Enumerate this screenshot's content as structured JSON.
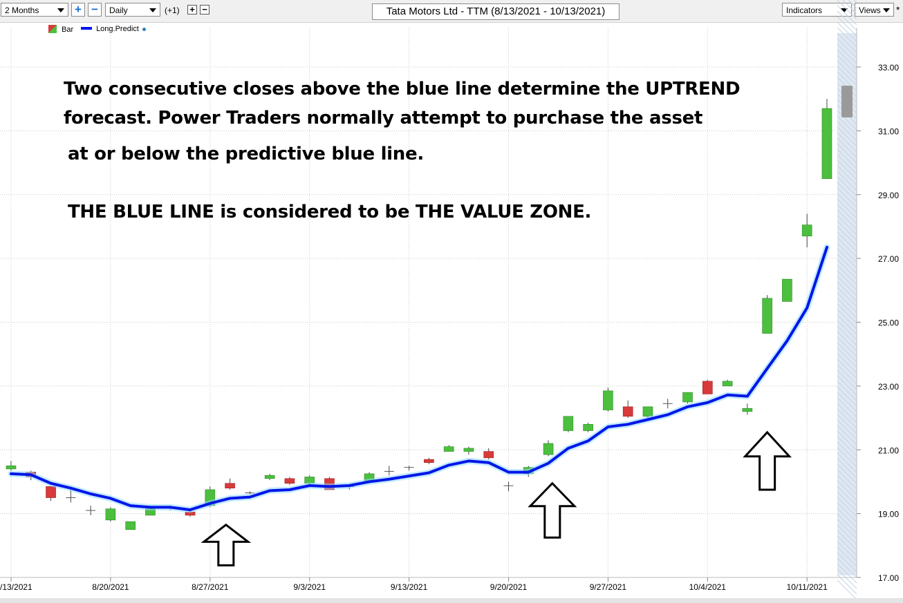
{
  "toolbar": {
    "range_select": "2 Months",
    "interval_select": "Daily",
    "offset_text": "(+1)",
    "plus_glyph": "+",
    "minus_glyph": "−",
    "title": "Tata Motors Ltd - TTM (8/13/2021 - 10/13/2021)",
    "indicators_label": "Indicators",
    "views_label": "Views",
    "star": "*"
  },
  "legend": {
    "bar_label": "Bar",
    "predict_label": "Long.Predict"
  },
  "annotations": {
    "line1": "Two consecutive closes above the blue line determine the UPTREND",
    "line2": "forecast.    Power Traders normally attempt to purchase the asset",
    "line3": "at or below the predictive blue line.",
    "line4": "THE BLUE LINE is considered to be THE VALUE ZONE."
  },
  "colors": {
    "up": "#4cbf3f",
    "down": "#d93a3a",
    "predict": "#0016e8",
    "glow": "#8fd8ff",
    "grid": "#c8c8c8"
  },
  "chart_data": {
    "type": "bar",
    "title": "Tata Motors Ltd - TTM (8/13/2021 - 10/13/2021)",
    "ylim": [
      17.0,
      33.8
    ],
    "y_ticks": [
      "17.00",
      "19.00",
      "21.00",
      "23.00",
      "25.00",
      "27.00",
      "29.00",
      "31.00",
      "33.00"
    ],
    "x_ticks": [
      {
        "label": "/13/2021",
        "index": 0
      },
      {
        "label": "8/20/2021",
        "index": 5
      },
      {
        "label": "8/27/2021",
        "index": 10
      },
      {
        "label": "9/3/2021",
        "index": 15
      },
      {
        "label": "9/13/2021",
        "index": 20
      },
      {
        "label": "9/20/2021",
        "index": 25
      },
      {
        "label": "9/27/2021",
        "index": 30
      },
      {
        "label": "10/4/2021",
        "index": 35
      },
      {
        "label": "10/11/2021",
        "index": 40
      }
    ],
    "candles": [
      {
        "o": 20.4,
        "h": 20.65,
        "l": 20.35,
        "c": 20.5
      },
      {
        "o": 20.3,
        "h": 20.35,
        "l": 20.05,
        "c": 20.15
      },
      {
        "o": 19.85,
        "h": 19.85,
        "l": 19.4,
        "c": 19.5
      },
      {
        "o": 19.5,
        "h": 19.75,
        "l": 19.35,
        "c": 19.5
      },
      {
        "o": 19.1,
        "h": 19.25,
        "l": 18.95,
        "c": 19.1
      },
      {
        "o": 18.8,
        "h": 19.2,
        "l": 18.75,
        "c": 19.15
      },
      {
        "o": 18.5,
        "h": 18.75,
        "l": 18.5,
        "c": 18.75
      },
      {
        "o": 18.95,
        "h": 19.2,
        "l": 18.95,
        "c": 19.15
      },
      {
        "o": 19.2,
        "h": 19.25,
        "l": 19.1,
        "c": 19.2
      },
      {
        "o": 19.05,
        "h": 19.1,
        "l": 18.9,
        "c": 18.95
      },
      {
        "o": 19.25,
        "h": 19.85,
        "l": 19.2,
        "c": 19.75
      },
      {
        "o": 19.95,
        "h": 20.1,
        "l": 19.75,
        "c": 19.8
      },
      {
        "o": 19.65,
        "h": 19.7,
        "l": 19.6,
        "c": 19.65
      },
      {
        "o": 20.1,
        "h": 20.25,
        "l": 20.05,
        "c": 20.2
      },
      {
        "o": 20.1,
        "h": 20.15,
        "l": 19.9,
        "c": 19.95
      },
      {
        "o": 19.95,
        "h": 20.2,
        "l": 19.9,
        "c": 20.15
      },
      {
        "o": 20.1,
        "h": 20.15,
        "l": 19.75,
        "c": 19.75
      },
      {
        "o": 19.85,
        "h": 19.9,
        "l": 19.75,
        "c": 19.85
      },
      {
        "o": 20.0,
        "h": 20.3,
        "l": 19.95,
        "c": 20.25
      },
      {
        "o": 20.35,
        "h": 20.5,
        "l": 20.2,
        "c": 20.3
      },
      {
        "o": 20.45,
        "h": 20.5,
        "l": 20.35,
        "c": 20.45
      },
      {
        "o": 20.7,
        "h": 20.75,
        "l": 20.55,
        "c": 20.6
      },
      {
        "o": 20.95,
        "h": 21.15,
        "l": 20.95,
        "c": 21.1
      },
      {
        "o": 20.95,
        "h": 21.1,
        "l": 20.85,
        "c": 21.05
      },
      {
        "o": 20.95,
        "h": 21.05,
        "l": 20.7,
        "c": 20.75
      },
      {
        "o": 19.9,
        "h": 20.0,
        "l": 19.7,
        "c": 19.85
      },
      {
        "o": 20.25,
        "h": 20.5,
        "l": 20.15,
        "c": 20.45
      },
      {
        "o": 20.85,
        "h": 21.3,
        "l": 20.8,
        "c": 21.2
      },
      {
        "o": 21.6,
        "h": 22.05,
        "l": 21.55,
        "c": 22.05
      },
      {
        "o": 21.6,
        "h": 21.85,
        "l": 21.55,
        "c": 21.8
      },
      {
        "o": 22.25,
        "h": 22.95,
        "l": 22.2,
        "c": 22.85
      },
      {
        "o": 22.35,
        "h": 22.55,
        "l": 22.0,
        "c": 22.05
      },
      {
        "o": 22.05,
        "h": 22.35,
        "l": 22.0,
        "c": 22.35
      },
      {
        "o": 22.45,
        "h": 22.6,
        "l": 22.3,
        "c": 22.45
      },
      {
        "o": 22.5,
        "h": 22.8,
        "l": 22.45,
        "c": 22.8
      },
      {
        "o": 23.15,
        "h": 23.2,
        "l": 22.75,
        "c": 22.75
      },
      {
        "o": 23.0,
        "h": 23.2,
        "l": 23.0,
        "c": 23.15
      },
      {
        "o": 22.2,
        "h": 22.45,
        "l": 22.1,
        "c": 22.3
      },
      {
        "o": 24.65,
        "h": 25.85,
        "l": 24.65,
        "c": 25.75
      },
      {
        "o": 25.65,
        "h": 26.35,
        "l": 25.65,
        "c": 26.35
      },
      {
        "o": 27.7,
        "h": 28.4,
        "l": 27.35,
        "c": 28.05
      },
      {
        "o": 29.5,
        "h": 32.0,
        "l": 29.5,
        "c": 31.7
      }
    ],
    "series": [
      {
        "name": "Long.Predict",
        "values": [
          20.25,
          20.22,
          19.95,
          19.8,
          19.62,
          19.48,
          19.25,
          19.2,
          19.2,
          19.12,
          19.32,
          19.48,
          19.52,
          19.72,
          19.75,
          19.88,
          19.85,
          19.88,
          20.0,
          20.08,
          20.18,
          20.28,
          20.52,
          20.65,
          20.6,
          20.3,
          20.3,
          20.58,
          21.05,
          21.28,
          21.72,
          21.8,
          21.95,
          22.1,
          22.35,
          22.48,
          22.72,
          22.68,
          23.55,
          24.42,
          25.45,
          27.35
        ]
      }
    ],
    "arrows": [
      {
        "x_index": 10.8,
        "tip_value": 18.65,
        "tail_value": 17.38
      },
      {
        "x_index": 27.2,
        "tip_value": 19.95,
        "tail_value": 18.25
      },
      {
        "x_index": 38.0,
        "tip_value": 21.55,
        "tail_value": 19.75
      }
    ]
  }
}
